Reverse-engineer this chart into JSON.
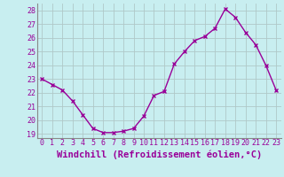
{
  "x": [
    0,
    1,
    2,
    3,
    4,
    5,
    6,
    7,
    8,
    9,
    10,
    11,
    12,
    13,
    14,
    15,
    16,
    17,
    18,
    19,
    20,
    21,
    22,
    23
  ],
  "y": [
    23.0,
    22.6,
    22.2,
    21.4,
    20.4,
    19.4,
    19.1,
    19.1,
    19.2,
    19.4,
    20.3,
    21.8,
    22.1,
    24.1,
    25.0,
    25.8,
    26.1,
    26.7,
    28.1,
    27.5,
    26.4,
    25.5,
    24.0,
    22.2
  ],
  "line_color": "#990099",
  "marker": "x",
  "marker_size": 3,
  "bg_color": "#c8eef0",
  "grid_color": "#b0c8c8",
  "xlabel": "Windchill (Refroidissement éolien,°C)",
  "xlabel_color": "#990099",
  "ylim_min": 18.7,
  "ylim_max": 28.5,
  "yticks": [
    19,
    20,
    21,
    22,
    23,
    24,
    25,
    26,
    27,
    28
  ],
  "xticks": [
    0,
    1,
    2,
    3,
    4,
    5,
    6,
    7,
    8,
    9,
    10,
    11,
    12,
    13,
    14,
    15,
    16,
    17,
    18,
    19,
    20,
    21,
    22,
    23
  ],
  "tick_color": "#990099",
  "tick_label_fontsize": 6.0,
  "xlabel_fontsize": 7.5,
  "axis_border_color": "#888888",
  "linewidth": 1.0
}
